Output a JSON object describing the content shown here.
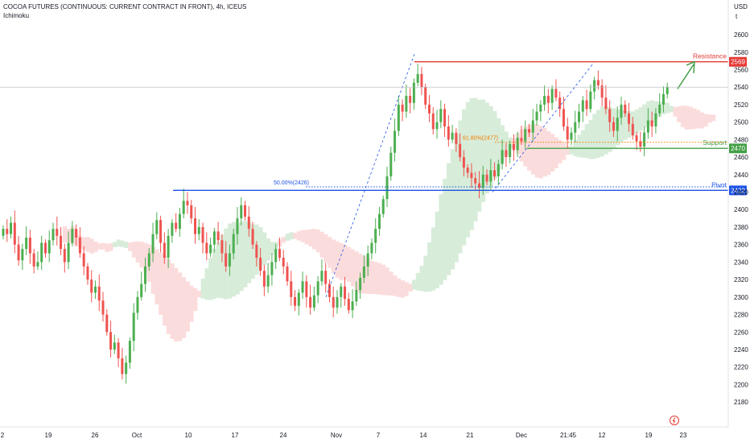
{
  "header": {
    "title": "COCOA FUTURES (CONTINUOUS: CURRENT CONTRACT IN FRONT), 4h, ICEUS",
    "indicator": "Ichimoku"
  },
  "axis": {
    "currency": "USD",
    "currency_sub": "t"
  },
  "chart_data": {
    "type": "candlestick",
    "y_ticks": [
      2180,
      2200,
      2220,
      2240,
      2260,
      2280,
      2300,
      2320,
      2340,
      2360,
      2380,
      2400,
      2420,
      2440,
      2460,
      2480,
      2500,
      2520,
      2540,
      2560,
      2580,
      2600
    ],
    "ylim": [
      2170,
      2612
    ],
    "x_tick_labels": [
      "2",
      "19",
      "26",
      "Oct",
      "10",
      "17",
      "24",
      "Nov",
      "7",
      "14",
      "21",
      "Dec",
      "21:45",
      "12",
      "19",
      "23"
    ],
    "levels": [
      {
        "name": "Resistance",
        "value": 2569,
        "label": "2569",
        "color": "#e53935"
      },
      {
        "name": "Support",
        "value": 2470,
        "label": "2470",
        "color": "#43a047"
      },
      {
        "name": "Pivot",
        "value": 2422,
        "label": "2422",
        "color": "#1e53e5"
      }
    ],
    "fibs": [
      {
        "label": "50.00%(2426)",
        "value": 2426,
        "color": "#1e53e5"
      },
      {
        "label": "61.80%(2477)",
        "value": 2477,
        "color": "#f57c00"
      }
    ],
    "candle_colors": {
      "up": "#4caf50",
      "down": "#ef5350"
    },
    "cloud_colors": {
      "bull": "#d7ecd9",
      "bear": "#fbdcdc"
    },
    "closes": [
      2378,
      2372,
      2385,
      2360,
      2342,
      2355,
      2368,
      2350,
      2335,
      2340,
      2362,
      2350,
      2365,
      2378,
      2370,
      2355,
      2340,
      2362,
      2378,
      2368,
      2350,
      2335,
      2320,
      2305,
      2312,
      2296,
      2280,
      2260,
      2240,
      2248,
      2230,
      2212,
      2225,
      2250,
      2282,
      2300,
      2315,
      2335,
      2350,
      2372,
      2388,
      2362,
      2345,
      2370,
      2385,
      2378,
      2395,
      2410,
      2405,
      2390,
      2372,
      2380,
      2362,
      2350,
      2360,
      2375,
      2365,
      2350,
      2335,
      2350,
      2372,
      2390,
      2405,
      2392,
      2378,
      2360,
      2345,
      2330,
      2312,
      2325,
      2340,
      2355,
      2345,
      2335,
      2318,
      2300,
      2290,
      2305,
      2318,
      2300,
      2288,
      2302,
      2318,
      2330,
      2315,
      2300,
      2288,
      2300,
      2312,
      2298,
      2285,
      2295,
      2308,
      2322,
      2335,
      2350,
      2362,
      2378,
      2395,
      2412,
      2438,
      2465,
      2490,
      2520,
      2512,
      2530,
      2522,
      2545,
      2555,
      2540,
      2520,
      2510,
      2492,
      2500,
      2515,
      2495,
      2480,
      2488,
      2475,
      2460,
      2448,
      2442,
      2436,
      2430,
      2425,
      2440,
      2432,
      2445,
      2438,
      2452,
      2468,
      2460,
      2475,
      2468,
      2482,
      2478,
      2492,
      2488,
      2502,
      2512,
      2520,
      2530,
      2522,
      2538,
      2528,
      2515,
      2495,
      2480,
      2488,
      2500,
      2512,
      2525,
      2515,
      2535,
      2548,
      2542,
      2528,
      2515,
      2500,
      2490,
      2505,
      2520,
      2510,
      2498,
      2485,
      2478,
      2472,
      2488,
      2502,
      2495,
      2510,
      2520,
      2532,
      2540
    ],
    "last_value": 2540
  }
}
